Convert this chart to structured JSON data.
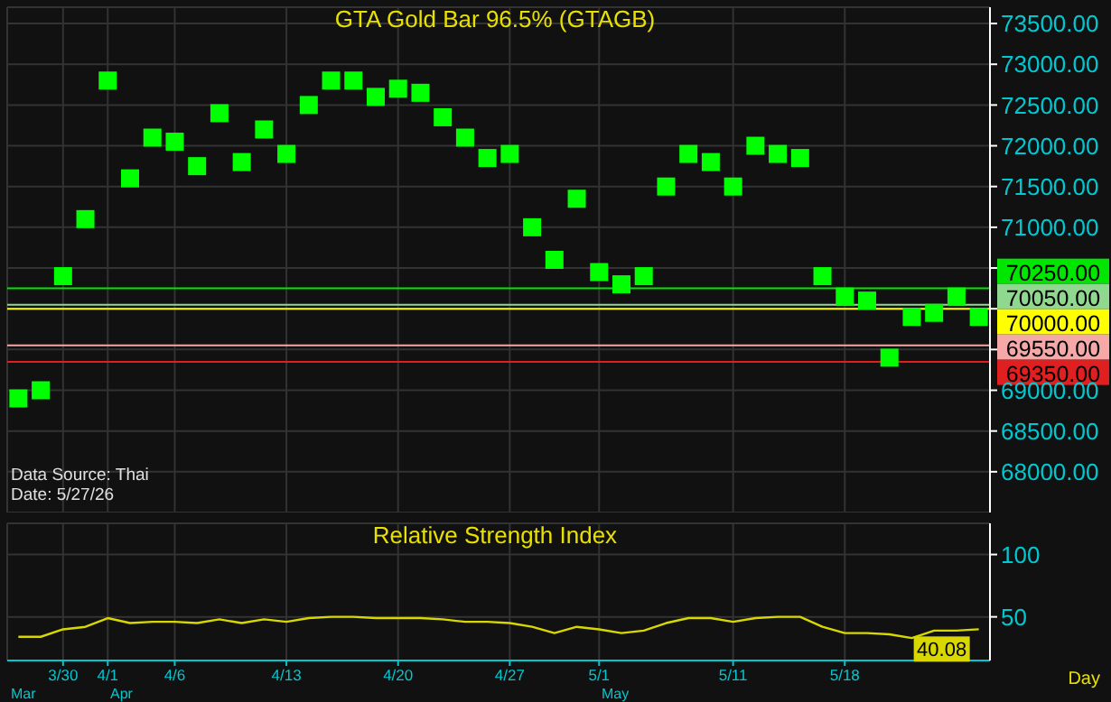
{
  "chart_data": [
    {
      "type": "scatter",
      "title": "GTA Gold Bar 96.5% (GTAGB)",
      "categories": [
        null,
        null,
        null,
        null,
        null,
        null,
        null,
        null,
        null,
        null,
        null,
        null,
        null,
        null,
        null,
        null,
        null,
        null,
        null,
        null,
        null,
        null,
        null,
        null,
        null,
        null,
        null,
        null,
        null,
        null,
        null,
        null,
        null,
        null,
        null,
        null,
        null,
        null,
        null,
        null,
        null,
        null,
        null,
        null
      ],
      "series": [
        {
          "color": "#00ff00",
          "values": [
            68900,
            69000,
            70400,
            71100,
            72800,
            71600,
            72100,
            72050,
            71750,
            72400,
            71800,
            72200,
            71900,
            72500,
            72800,
            72800,
            72600,
            72700,
            72650,
            72350,
            72100,
            71850,
            71900,
            71000,
            70600,
            71350,
            70450,
            70300,
            70400,
            71500,
            71900,
            71800,
            71500,
            72000,
            71900,
            71850,
            70400,
            70150,
            70100,
            69400,
            69900,
            69950,
            70150,
            69900
          ]
        }
      ],
      "marker": "square",
      "ylim": [
        67500,
        73700
      ],
      "yticks": [
        {
          "value": 68000,
          "label": "68000.00"
        },
        {
          "value": 68500,
          "label": "68500.00"
        },
        {
          "value": 69000,
          "label": "69000.00"
        },
        {
          "value": 69500,
          "label": null
        },
        {
          "value": 70000,
          "label": null
        },
        {
          "value": 70500,
          "label": null
        },
        {
          "value": 71000,
          "label": "71000.00"
        },
        {
          "value": 71500,
          "label": "71500.00"
        },
        {
          "value": 72000,
          "label": "72000.00"
        },
        {
          "value": 72500,
          "label": "72500.00"
        },
        {
          "value": 73000,
          "label": "73000.00"
        },
        {
          "value": 73500,
          "label": "73500.00"
        }
      ],
      "ref_lines": [
        {
          "axis": "y",
          "value": 70250,
          "label": "70250.00",
          "color": "#00e600"
        },
        {
          "axis": "y",
          "value": 70050,
          "label": "70050.00",
          "color": "#90d890"
        },
        {
          "axis": "y",
          "value": 70000,
          "label": "70000.00",
          "color": "#ffff00"
        },
        {
          "axis": "y",
          "value": 69550,
          "label": "69550.00",
          "color": "#f4a8a8"
        },
        {
          "axis": "y",
          "value": 69350,
          "label": "69350.00",
          "color": "#e02020"
        }
      ],
      "annotations": [
        "Data Source: Thai",
        "Date: 5/27/26"
      ],
      "grid": true,
      "tick_labels": "y"
    },
    {
      "type": "line",
      "title": "Relative Strength Index",
      "xlabel": "Day",
      "categories": [
        null,
        null,
        "3/30",
        null,
        "4/1",
        null,
        null,
        "4/6",
        null,
        null,
        null,
        null,
        "4/13",
        null,
        null,
        null,
        null,
        "4/20",
        null,
        null,
        null,
        null,
        "4/27",
        null,
        null,
        null,
        "5/1",
        null,
        null,
        null,
        null,
        null,
        "5/11",
        null,
        null,
        null,
        null,
        "5/18",
        null,
        null,
        null,
        null,
        null,
        null
      ],
      "series": [
        {
          "color": "#d8d800",
          "values": [
            34,
            34,
            40,
            42,
            49,
            45,
            46,
            46,
            45,
            48,
            45,
            48,
            46,
            49,
            50,
            50,
            49,
            49,
            49,
            48,
            46,
            46,
            45,
            42,
            37,
            42,
            40,
            37,
            39,
            45,
            49,
            49,
            46,
            49,
            50,
            50,
            42,
            37,
            37,
            36,
            33,
            39,
            39,
            40.08
          ],
          "value_labels": [
            null,
            null,
            null,
            null,
            null,
            null,
            null,
            null,
            null,
            null,
            null,
            null,
            null,
            null,
            null,
            null,
            null,
            null,
            null,
            null,
            null,
            null,
            null,
            null,
            null,
            null,
            null,
            null,
            null,
            null,
            null,
            null,
            null,
            null,
            null,
            null,
            null,
            null,
            null,
            null,
            null,
            null,
            null,
            "40.08"
          ]
        }
      ],
      "marker": "none",
      "ylim": [
        15,
        125
      ],
      "yticks": [
        50,
        100
      ],
      "annotations": [
        "Mar",
        "Apr",
        "May"
      ],
      "grid": true
    }
  ]
}
